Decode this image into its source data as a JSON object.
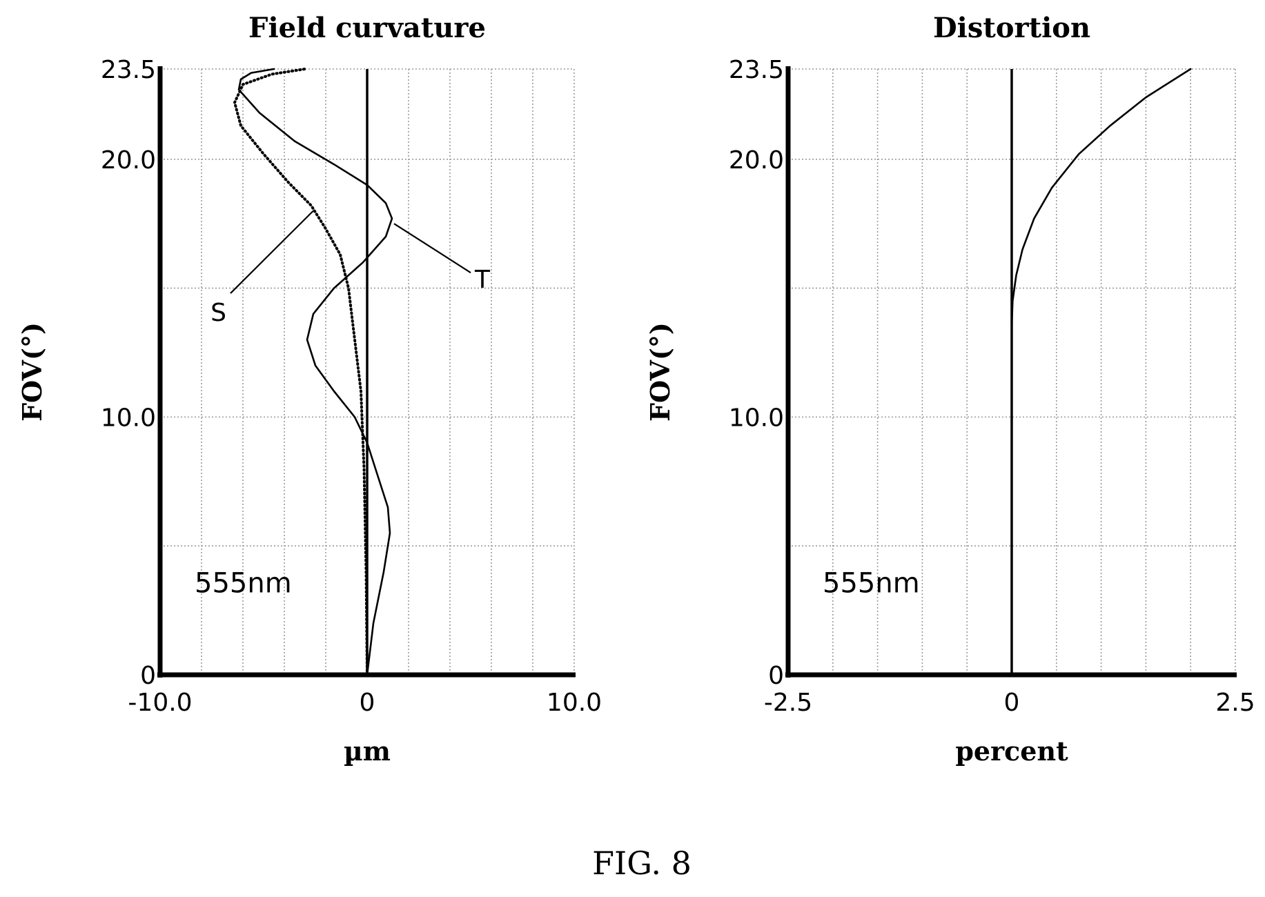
{
  "figure": {
    "caption": "FIG. 8"
  },
  "chart_data": [
    {
      "type": "line",
      "title": "Field curvature",
      "xlabel": "µm",
      "ylabel": "FOV(°)",
      "xlim": [
        -10,
        10
      ],
      "ylim": [
        0,
        23.5
      ],
      "xticks": [
        -10,
        -8,
        -6,
        -4,
        -2,
        0,
        2,
        4,
        6,
        8,
        10
      ],
      "xtick_labels": [
        "-10.0",
        "0",
        "10.0"
      ],
      "xtick_label_values": [
        -10,
        0,
        10
      ],
      "yticks": [
        0,
        5,
        10,
        15,
        20,
        23.5
      ],
      "ytick_labels": [
        "0",
        "10.0",
        "20.0",
        "23.5"
      ],
      "ytick_label_values": [
        0,
        10,
        20,
        23.5
      ],
      "grid": true,
      "annotation": "555nm",
      "series": [
        {
          "name": "T",
          "style": "solid",
          "points": [
            [
              0,
              0
            ],
            [
              0.3,
              2
            ],
            [
              0.8,
              4
            ],
            [
              1.1,
              5.5
            ],
            [
              1.0,
              6.5
            ],
            [
              0.4,
              8
            ],
            [
              0,
              9
            ],
            [
              -0.6,
              10
            ],
            [
              -1.6,
              11
            ],
            [
              -2.5,
              12
            ],
            [
              -2.9,
              13
            ],
            [
              -2.6,
              14
            ],
            [
              -1.6,
              15
            ],
            [
              -0.2,
              16
            ],
            [
              0.9,
              17
            ],
            [
              1.2,
              17.7
            ],
            [
              0.9,
              18.3
            ],
            [
              0,
              19
            ],
            [
              -1.6,
              19.8
            ],
            [
              -3.5,
              20.7
            ],
            [
              -5.2,
              21.8
            ],
            [
              -6.2,
              22.7
            ],
            [
              -6.1,
              23.1
            ],
            [
              -5.6,
              23.35
            ],
            [
              -4.5,
              23.5
            ]
          ],
          "label_anchor": [
            1.3,
            17.5
          ],
          "label_text_pos": [
            5.0,
            15.6
          ]
        },
        {
          "name": "S",
          "style": "dotted",
          "points": [
            [
              0,
              0
            ],
            [
              -0.05,
              4
            ],
            [
              -0.15,
              8
            ],
            [
              -0.3,
              11
            ],
            [
              -0.6,
              13
            ],
            [
              -0.9,
              15
            ],
            [
              -1.3,
              16.3
            ],
            [
              -2,
              17.3
            ],
            [
              -2.7,
              18.2
            ],
            [
              -3.8,
              19.1
            ],
            [
              -5,
              20.2
            ],
            [
              -6.1,
              21.3
            ],
            [
              -6.4,
              22.2
            ],
            [
              -6,
              22.9
            ],
            [
              -4.6,
              23.3
            ],
            [
              -3,
              23.5
            ]
          ],
          "label_anchor": [
            -2.6,
            18.0
          ],
          "label_text_pos": [
            -6.6,
            14.8
          ]
        }
      ]
    },
    {
      "type": "line",
      "title": "Distortion",
      "xlabel": "percent",
      "ylabel": "FOV(°)",
      "xlim": [
        -2.5,
        2.5
      ],
      "ylim": [
        0,
        23.5
      ],
      "xticks": [
        -2.5,
        -2,
        -1.5,
        -1,
        -0.5,
        0,
        0.5,
        1,
        1.5,
        2,
        2.5
      ],
      "xtick_labels": [
        "-2.5",
        "0",
        "2.5"
      ],
      "xtick_label_values": [
        -2.5,
        0,
        2.5
      ],
      "yticks": [
        0,
        5,
        10,
        15,
        20,
        23.5
      ],
      "ytick_labels": [
        "0",
        "10.0",
        "20.0",
        "23.5"
      ],
      "ytick_label_values": [
        0,
        10,
        20,
        23.5
      ],
      "grid": true,
      "annotation": "555nm",
      "series": [
        {
          "style": "solid",
          "points": [
            [
              0,
              0
            ],
            [
              0,
              10
            ],
            [
              0,
              13.5
            ],
            [
              0.01,
              14.5
            ],
            [
              0.05,
              15.5
            ],
            [
              0.12,
              16.5
            ],
            [
              0.25,
              17.7
            ],
            [
              0.45,
              18.9
            ],
            [
              0.75,
              20.2
            ],
            [
              1.1,
              21.3
            ],
            [
              1.5,
              22.4
            ],
            [
              2.0,
              23.5
            ]
          ]
        }
      ]
    }
  ]
}
